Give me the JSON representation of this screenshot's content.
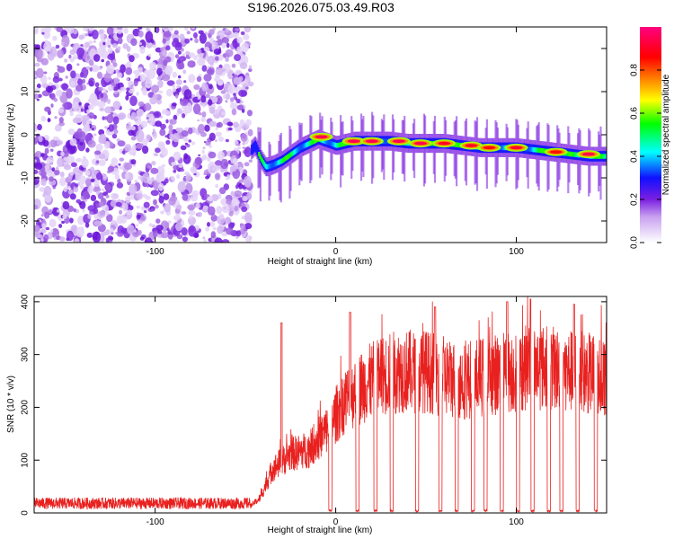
{
  "title": "S196.2026.075.03.49.R03",
  "chart_data": [
    {
      "type": "heatmap",
      "name": "spectrogram",
      "xlabel": "Height of straight line (km)",
      "ylabel": "Frequency (Hz)",
      "xlim": [
        -167,
        150
      ],
      "ylim": [
        -25,
        25
      ],
      "xticks": [
        -100,
        0,
        100
      ],
      "yticks": [
        -20,
        -10,
        0,
        10,
        20
      ],
      "colorbar": {
        "label": "Normalized spectral amplitude",
        "range": [
          0,
          1
        ],
        "ticks": [
          0.0,
          0.2,
          0.4,
          0.6,
          0.8
        ],
        "colors": [
          "#ffffff",
          "#c8a0f0",
          "#7b1fe0",
          "#1010ff",
          "#00ffff",
          "#00ff00",
          "#ffff00",
          "#ff8000",
          "#ff0000",
          "#ff0080"
        ]
      },
      "noise_region": {
        "x": [
          -167,
          -47
        ],
        "level": 0.12
      },
      "ridge": [
        {
          "x": -47,
          "freq": -3.5
        },
        {
          "x": -45,
          "freq": -2.5
        },
        {
          "x": -42,
          "freq": -5.5
        },
        {
          "x": -39,
          "freq": -7.5
        },
        {
          "x": -35,
          "freq": -7
        },
        {
          "x": -30,
          "freq": -6
        },
        {
          "x": -25,
          "freq": -4.5
        },
        {
          "x": -20,
          "freq": -3
        },
        {
          "x": -15,
          "freq": -2
        },
        {
          "x": -10,
          "freq": -1
        },
        {
          "x": 0,
          "freq": -2.5
        },
        {
          "x": 5,
          "freq": -2
        },
        {
          "x": 10,
          "freq": -1.5
        },
        {
          "x": 20,
          "freq": -1.5
        },
        {
          "x": 30,
          "freq": -1.5
        },
        {
          "x": 40,
          "freq": -2
        },
        {
          "x": 50,
          "freq": -2
        },
        {
          "x": 60,
          "freq": -2
        },
        {
          "x": 70,
          "freq": -2.5
        },
        {
          "x": 80,
          "freq": -3
        },
        {
          "x": 90,
          "freq": -3
        },
        {
          "x": 100,
          "freq": -3
        },
        {
          "x": 110,
          "freq": -3.5
        },
        {
          "x": 120,
          "freq": -4
        },
        {
          "x": 130,
          "freq": -4.5
        },
        {
          "x": 140,
          "freq": -5
        },
        {
          "x": 150,
          "freq": -5
        }
      ],
      "ridge_peaks": [
        {
          "x": -8,
          "freq": -0.5,
          "amp": 0.95
        },
        {
          "x": 10,
          "freq": -1.5,
          "amp": 0.95
        },
        {
          "x": 20,
          "freq": -1.5,
          "amp": 0.95
        },
        {
          "x": 35,
          "freq": -1.5,
          "amp": 0.95
        },
        {
          "x": 47,
          "freq": -2,
          "amp": 0.95
        },
        {
          "x": 60,
          "freq": -2,
          "amp": 0.9
        },
        {
          "x": 75,
          "freq": -2.5,
          "amp": 0.9
        },
        {
          "x": 85,
          "freq": -3,
          "amp": 0.85
        },
        {
          "x": 100,
          "freq": -3,
          "amp": 0.9
        },
        {
          "x": 122,
          "freq": -4,
          "amp": 0.85
        },
        {
          "x": 140,
          "freq": -4.5,
          "amp": 0.95
        }
      ]
    },
    {
      "type": "line",
      "name": "snr",
      "xlabel": "Height of straight line (km)",
      "ylabel": "SNR (10 * v/v)",
      "xlim": [
        -167,
        150
      ],
      "ylim": [
        0,
        410
      ],
      "xticks": [
        -100,
        0,
        100
      ],
      "yticks": [
        0,
        100,
        200,
        300,
        400
      ],
      "series": [
        {
          "name": "SNR",
          "color": "#e8211f",
          "envelope": [
            {
              "x": -167,
              "y": 15
            },
            {
              "x": -47,
              "y": 15
            },
            {
              "x": -42,
              "y": 30
            },
            {
              "x": -35,
              "y": 90
            },
            {
              "x": -25,
              "y": 120
            },
            {
              "x": -15,
              "y": 130
            },
            {
              "x": -5,
              "y": 170
            },
            {
              "x": 5,
              "y": 230
            },
            {
              "x": 15,
              "y": 260
            },
            {
              "x": 25,
              "y": 280
            },
            {
              "x": 35,
              "y": 290
            },
            {
              "x": 50,
              "y": 290
            },
            {
              "x": 70,
              "y": 270
            },
            {
              "x": 90,
              "y": 285
            },
            {
              "x": 110,
              "y": 300
            },
            {
              "x": 130,
              "y": 290
            },
            {
              "x": 150,
              "y": 280
            }
          ],
          "peaks": [
            {
              "x": -30,
              "y": 360
            },
            {
              "x": 8,
              "y": 380
            },
            {
              "x": 45,
              "y": 380
            },
            {
              "x": 55,
              "y": 390
            },
            {
              "x": 95,
              "y": 400
            },
            {
              "x": 108,
              "y": 405
            },
            {
              "x": 132,
              "y": 395
            },
            {
              "x": 150,
              "y": 360
            }
          ],
          "dropouts": [
            -3,
            12,
            22,
            31,
            45,
            58,
            67,
            76,
            83,
            92,
            101,
            109,
            118,
            125,
            134,
            144
          ]
        }
      ]
    }
  ]
}
